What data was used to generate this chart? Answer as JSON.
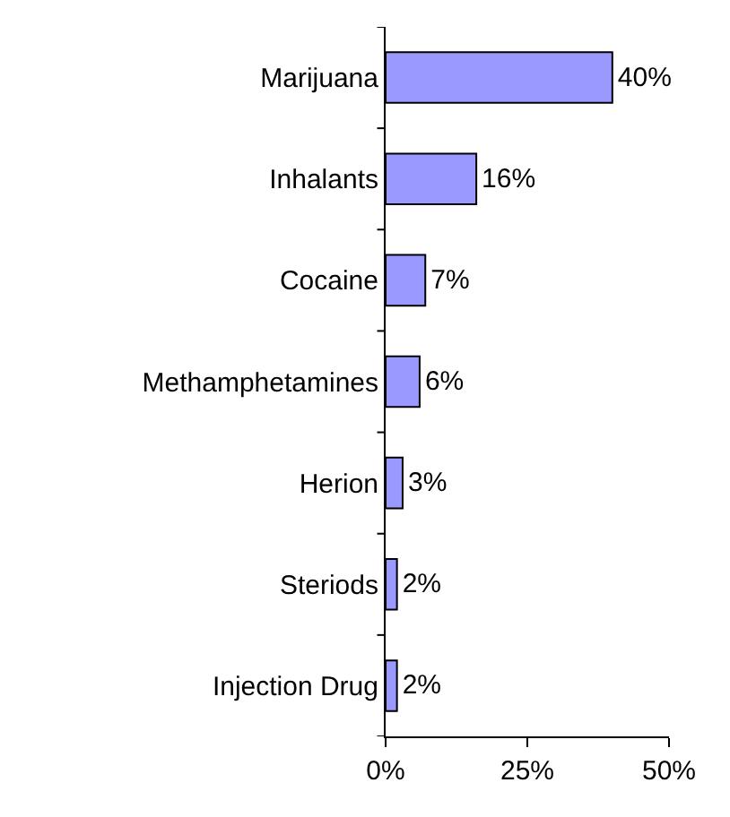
{
  "chart_data": {
    "type": "bar",
    "orientation": "horizontal",
    "categories": [
      "Marijuana",
      "Inhalants",
      "Cocaine",
      "Methamphetamines",
      "Herion",
      "Steriods",
      "Injection Drug"
    ],
    "values": [
      40,
      16,
      7,
      6,
      3,
      2,
      2
    ],
    "value_labels": [
      "40%",
      "16%",
      "7%",
      "6%",
      "3%",
      "2%",
      "2%"
    ],
    "color": "#9999ff",
    "xlim": [
      0,
      50
    ],
    "xticks": [
      {
        "value": 0,
        "label": "0%"
      },
      {
        "value": 25,
        "label": "25%"
      },
      {
        "value": 50,
        "label": "50%"
      }
    ],
    "legend": false
  }
}
